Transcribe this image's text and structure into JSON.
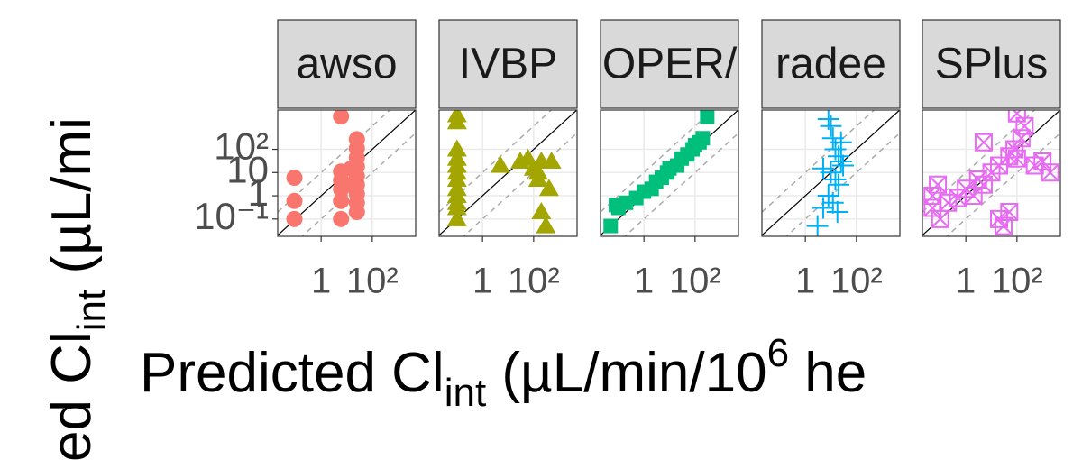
{
  "chart_data": [
    {
      "type": "scatter",
      "title": "awso",
      "marker": "circle",
      "color": "#F8766D",
      "log_x": true,
      "log_y": true,
      "grid": true,
      "x": [
        0.09,
        0.09,
        0.09,
        6,
        6,
        6,
        6,
        6,
        6,
        25,
        25,
        25,
        25,
        25,
        25,
        25,
        25,
        25,
        15,
        15
      ],
      "values": [
        6,
        0.6,
        0.1,
        2600,
        11,
        4.6,
        1.9,
        0.6,
        0.1,
        270,
        110,
        44,
        18,
        7,
        3,
        1.2,
        0.5,
        0.2,
        3,
        15
      ],
      "xlim": [
        0.02,
        5000
      ],
      "ylim": [
        0.018,
        4900
      ],
      "xticks": [
        1,
        {
          "value": 100,
          "label": "10²"
        }
      ],
      "yticks": [
        {
          "value": 0.1,
          "label": "10⁻¹"
        },
        1,
        10,
        {
          "value": 100,
          "label": "10²"
        }
      ],
      "ref_multipliers": [
        1,
        10,
        0.1
      ]
    },
    {
      "type": "scatter",
      "title": "IVBP",
      "marker": "triangle",
      "color": "#A3A500",
      "log_x": true,
      "log_y": true,
      "grid": true,
      "x": [
        0.1,
        0.1,
        0.1,
        0.1,
        0.1,
        0.1,
        0.1,
        0.1,
        0.1,
        0.1,
        0.1,
        0.1,
        5,
        30,
        60,
        100,
        150,
        200,
        300,
        400,
        150,
        200,
        500
      ],
      "values": [
        3000,
        1500,
        100,
        40,
        20,
        10,
        5,
        2,
        1,
        0.5,
        0.3,
        0.1,
        20,
        30,
        40,
        15,
        10,
        0.2,
        0.05,
        2,
        5,
        30,
        30
      ],
      "xlim": [
        0.02,
        5000
      ],
      "ylim": [
        0.018,
        4900
      ],
      "xticks": [
        1,
        {
          "value": 100,
          "label": "10²"
        }
      ],
      "yticks": [
        {
          "value": 0.1,
          "label": "10⁻¹"
        },
        1,
        10,
        {
          "value": 100,
          "label": "10²"
        }
      ],
      "ref_multipliers": [
        1,
        10,
        0.1
      ]
    },
    {
      "type": "scatter",
      "title": "OPER/",
      "marker": "square",
      "color": "#00BF7D",
      "log_x": true,
      "log_y": true,
      "grid": true,
      "x": [
        0.05,
        0.1,
        0.2,
        0.5,
        1,
        2,
        3,
        5,
        8,
        10,
        20,
        30,
        50,
        80,
        100,
        150,
        200,
        300,
        0.08
      ],
      "values": [
        0.05,
        0.3,
        0.5,
        0.8,
        1.5,
        2,
        4,
        6,
        10,
        15,
        20,
        40,
        60,
        100,
        150,
        200,
        300,
        2500,
        0.4
      ],
      "xlim": [
        0.02,
        5000
      ],
      "ylim": [
        0.018,
        4900
      ],
      "xticks": [
        1,
        {
          "value": 100,
          "label": "10²"
        }
      ],
      "yticks": [
        {
          "value": 0.1,
          "label": "10⁻¹"
        },
        1,
        10,
        {
          "value": 100,
          "label": "10²"
        }
      ],
      "ref_multipliers": [
        1,
        10,
        0.1
      ]
    },
    {
      "type": "scatter",
      "title": "radee",
      "marker": "plus",
      "color": "#00B0F6",
      "log_x": true,
      "log_y": true,
      "grid": true,
      "x": [
        3,
        5,
        8,
        10,
        12,
        15,
        20,
        25,
        30,
        10,
        15,
        20,
        8,
        12,
        18,
        5,
        25
      ],
      "values": [
        0.05,
        0.3,
        2000,
        1000,
        300,
        100,
        50,
        30,
        20,
        10,
        5,
        3,
        1,
        0.5,
        0.2,
        15,
        200
      ],
      "xlim": [
        0.02,
        5000
      ],
      "ylim": [
        0.018,
        4900
      ],
      "xticks": [
        1,
        {
          "value": 100,
          "label": "10²"
        }
      ],
      "yticks": [
        {
          "value": 0.1,
          "label": "10⁻¹"
        },
        1,
        10,
        {
          "value": 100,
          "label": "10²"
        }
      ],
      "ref_multipliers": [
        1,
        10,
        0.1
      ]
    },
    {
      "type": "scatter",
      "title": "SPlus",
      "marker": "square-x",
      "color": "#E76BF3",
      "log_x": true,
      "log_y": true,
      "grid": true,
      "x": [
        0.05,
        0.05,
        0.1,
        0.2,
        0.5,
        1,
        2,
        3,
        5,
        10,
        20,
        30,
        50,
        80,
        100,
        150,
        200,
        500,
        1000,
        2000,
        20,
        50,
        0.08,
        5,
        100
      ],
      "values": [
        0.3,
        1,
        0.1,
        0.5,
        0.8,
        2,
        1,
        5,
        3,
        10,
        20,
        0.05,
        50,
        100,
        3500,
        300,
        1000,
        20,
        30,
        10,
        0.1,
        0.2,
        3,
        200,
        40
      ],
      "xlim": [
        0.02,
        5000
      ],
      "ylim": [
        0.018,
        4900
      ],
      "xticks": [
        1,
        {
          "value": 100,
          "label": "10²"
        }
      ],
      "yticks": [
        {
          "value": 0.1,
          "label": "10⁻¹"
        },
        1,
        10,
        {
          "value": 100,
          "label": "10²"
        }
      ],
      "ref_multipliers": [
        1,
        10,
        0.1
      ]
    }
  ],
  "x_label": [
    "Predicted Cl",
    "int",
    " (µL/min/10",
    "6",
    " he"
  ],
  "y_label": [
    "ed Cl",
    "int",
    " (µL/mi"
  ]
}
